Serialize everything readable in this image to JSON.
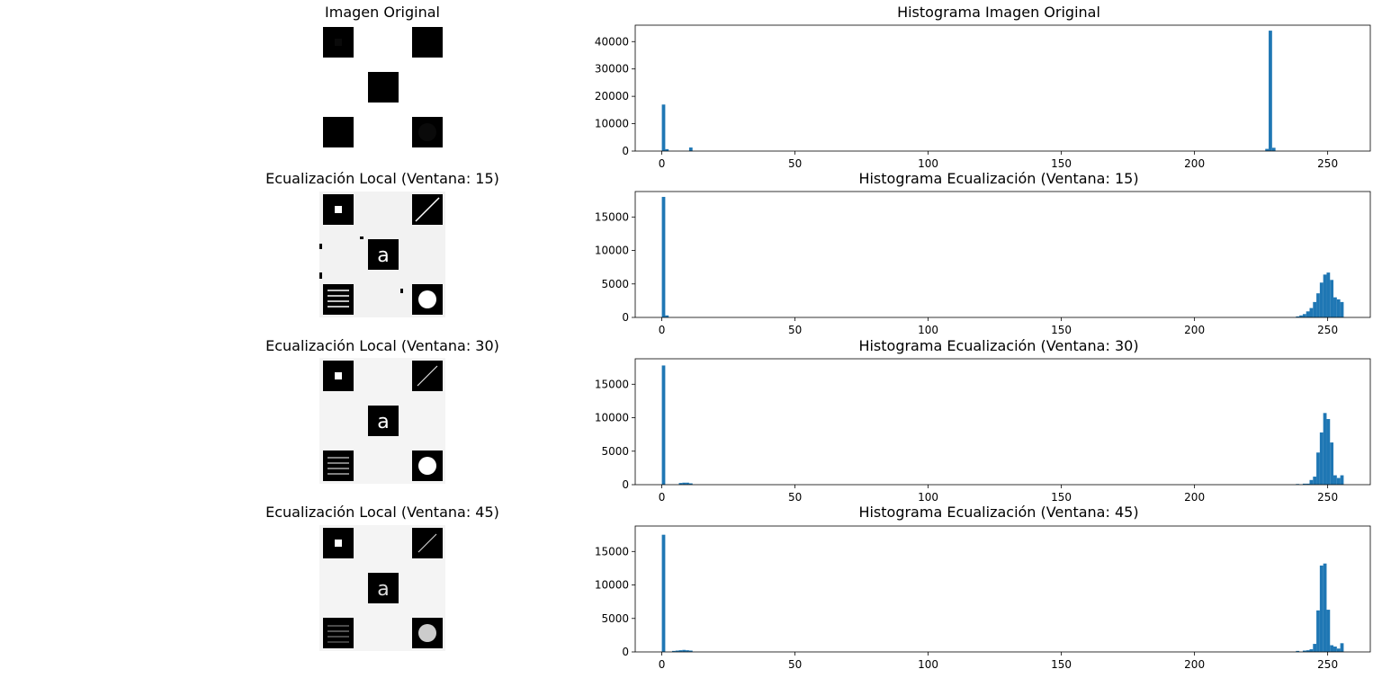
{
  "panels": [
    {
      "image_title": "Imagen Original",
      "image_kind": "original",
      "hist_title": "Histograma Imagen Original"
    },
    {
      "image_title": "Ecualización Local (Ventana: 15)",
      "image_kind": "eq15",
      "hist_title": "Histograma Ecualización (Ventana: 15)"
    },
    {
      "image_title": "Ecualización Local (Ventana: 30)",
      "image_kind": "eq30",
      "hist_title": "Histograma Ecualización (Ventana: 30)"
    },
    {
      "image_title": "Ecualización Local (Ventana: 45)",
      "image_kind": "eq45",
      "hist_title": "Histograma Ecualización (Ventana: 45)"
    }
  ],
  "chart_data": [
    {
      "type": "bar",
      "title": "Histograma Imagen Original",
      "xlabel": "",
      "ylabel": "",
      "xlim": [
        -10,
        266
      ],
      "ylim": [
        0,
        46000
      ],
      "xticks": [
        0,
        50,
        100,
        150,
        200,
        250
      ],
      "yticks": [
        0,
        10000,
        20000,
        30000,
        40000
      ],
      "bin_width": 1.28,
      "color": "#1f77b4",
      "x": [
        0,
        1.28,
        10.24,
        226.56,
        227.84,
        229.12
      ],
      "values": [
        17000,
        700,
        1300,
        800,
        44000,
        1200
      ]
    },
    {
      "type": "bar",
      "title": "Histograma Ecualización (Ventana: 15)",
      "xlabel": "",
      "ylabel": "",
      "xlim": [
        -10,
        266
      ],
      "ylim": [
        0,
        18800
      ],
      "xticks": [
        0,
        50,
        100,
        150,
        200,
        250
      ],
      "yticks": [
        0,
        5000,
        10000,
        15000
      ],
      "bin_width": 1.28,
      "color": "#1f77b4",
      "x": [
        0,
        1.28,
        238.08,
        239.36,
        240.64,
        241.92,
        243.2,
        244.48,
        245.76,
        247.04,
        248.32,
        249.6,
        250.88,
        252.16,
        253.44,
        254.72
      ],
      "values": [
        18000,
        300,
        150,
        300,
        500,
        900,
        1400,
        2300,
        3600,
        5200,
        6400,
        6700,
        5600,
        3000,
        2700,
        2300
      ]
    },
    {
      "type": "bar",
      "title": "Histograma Ecualización (Ventana: 30)",
      "xlabel": "",
      "ylabel": "",
      "xlim": [
        -10,
        266
      ],
      "ylim": [
        0,
        18800
      ],
      "xticks": [
        0,
        50,
        100,
        150,
        200,
        250
      ],
      "yticks": [
        0,
        5000,
        10000,
        15000
      ],
      "bin_width": 1.28,
      "color": "#1f77b4",
      "x": [
        0,
        6.4,
        7.68,
        8.96,
        10.24,
        238.08,
        240.64,
        241.92,
        243.2,
        244.48,
        245.76,
        247.04,
        248.32,
        249.6,
        250.88,
        252.16,
        253.44,
        254.72
      ],
      "values": [
        17800,
        250,
        300,
        300,
        200,
        100,
        150,
        150,
        700,
        1200,
        4800,
        7800,
        10700,
        9800,
        6300,
        1400,
        1000,
        1400
      ]
    },
    {
      "type": "bar",
      "title": "Histograma Ecualización (Ventana: 45)",
      "xlabel": "",
      "ylabel": "",
      "xlim": [
        -10,
        266
      ],
      "ylim": [
        0,
        18800
      ],
      "xticks": [
        0,
        50,
        100,
        150,
        200,
        250
      ],
      "yticks": [
        0,
        5000,
        10000,
        15000
      ],
      "bin_width": 1.28,
      "color": "#1f77b4",
      "x": [
        0,
        3.84,
        5.12,
        6.4,
        7.68,
        8.96,
        10.24,
        238.08,
        240.64,
        241.92,
        243.2,
        244.48,
        245.76,
        247.04,
        248.32,
        249.6,
        250.88,
        252.16,
        253.44,
        254.72
      ],
      "values": [
        17500,
        150,
        200,
        250,
        300,
        250,
        200,
        150,
        200,
        250,
        400,
        1200,
        6200,
        12900,
        13200,
        6300,
        1000,
        800,
        500,
        1300
      ]
    }
  ]
}
